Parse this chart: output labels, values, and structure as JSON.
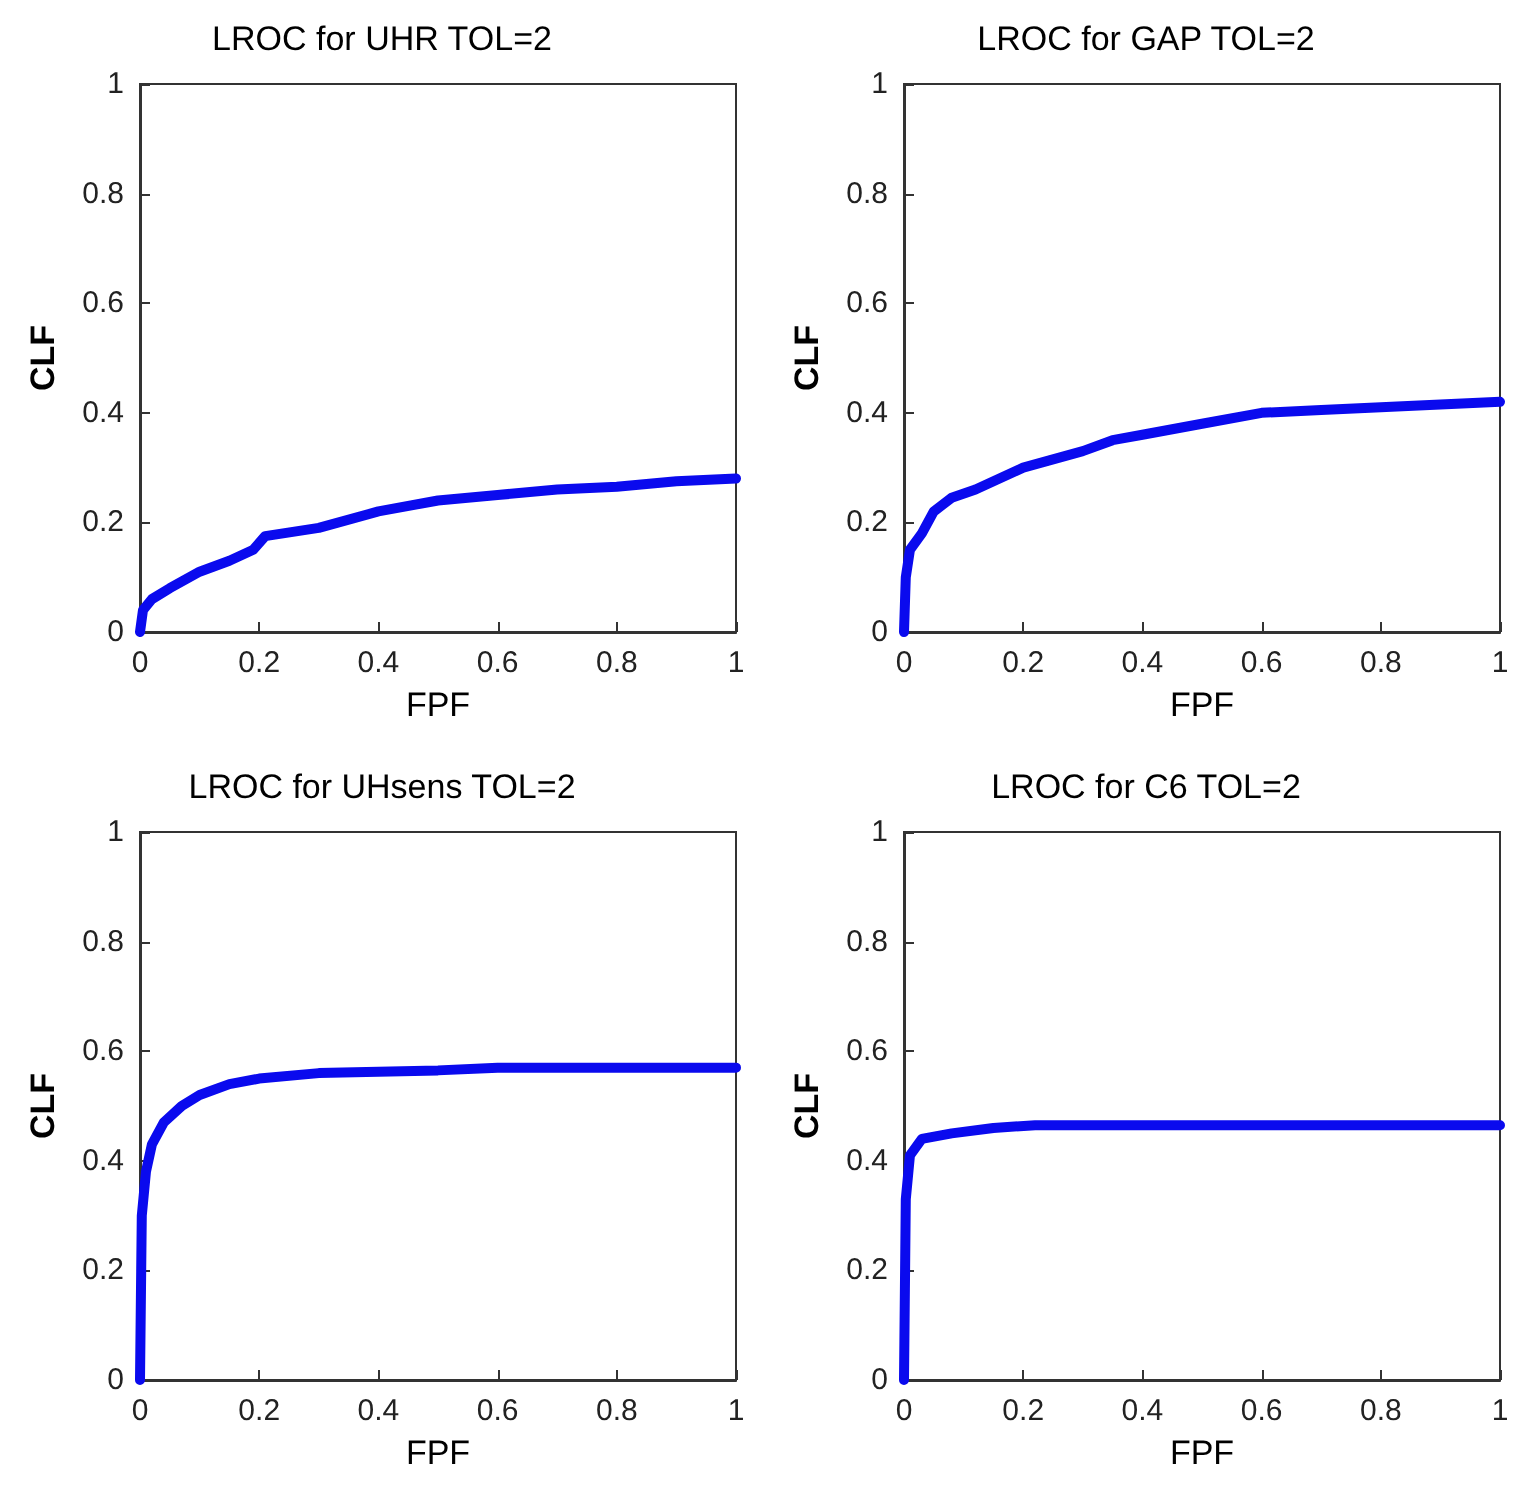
{
  "chart_data": [
    {
      "type": "line",
      "title": "LROC for UHR TOL=2",
      "xlabel": "FPF",
      "ylabel": "CLF",
      "xlim": [
        0,
        1
      ],
      "ylim": [
        0,
        1
      ],
      "xticks": [
        0,
        0.2,
        0.4,
        0.6,
        0.8,
        1
      ],
      "yticks": [
        0,
        0.2,
        0.4,
        0.6,
        0.8,
        1
      ],
      "marker": "none",
      "line_style": "solid",
      "series": [
        {
          "color": "#0a0aee",
          "x": [
            0,
            0.005,
            0.02,
            0.05,
            0.1,
            0.15,
            0.19,
            0.21,
            0.3,
            0.4,
            0.5,
            0.6,
            0.7,
            0.8,
            0.9,
            1
          ],
          "values": [
            0,
            0.04,
            0.06,
            0.08,
            0.11,
            0.13,
            0.15,
            0.175,
            0.19,
            0.22,
            0.24,
            0.25,
            0.26,
            0.265,
            0.275,
            0.28
          ]
        }
      ]
    },
    {
      "type": "line",
      "title": "LROC for GAP TOL=2",
      "xlabel": "FPF",
      "ylabel": "CLF",
      "xlim": [
        0,
        1
      ],
      "ylim": [
        0,
        1
      ],
      "xticks": [
        0,
        0.2,
        0.4,
        0.6,
        0.8,
        1
      ],
      "yticks": [
        0,
        0.2,
        0.4,
        0.6,
        0.8,
        1
      ],
      "marker": "none",
      "line_style": "solid",
      "series": [
        {
          "color": "#0a0aee",
          "x": [
            0,
            0.003,
            0.01,
            0.03,
            0.05,
            0.08,
            0.12,
            0.2,
            0.3,
            0.35,
            0.4,
            0.5,
            0.6,
            0.7,
            0.8,
            1
          ],
          "values": [
            0,
            0.1,
            0.15,
            0.18,
            0.22,
            0.245,
            0.26,
            0.3,
            0.33,
            0.35,
            0.36,
            0.38,
            0.4,
            0.405,
            0.41,
            0.42
          ]
        }
      ]
    },
    {
      "type": "line",
      "title": "LROC for UHsens TOL=2",
      "xlabel": "FPF",
      "ylabel": "CLF",
      "xlim": [
        0,
        1
      ],
      "ylim": [
        0,
        1
      ],
      "xticks": [
        0,
        0.2,
        0.4,
        0.6,
        0.8,
        1
      ],
      "yticks": [
        0,
        0.2,
        0.4,
        0.6,
        0.8,
        1
      ],
      "marker": "none",
      "line_style": "solid",
      "series": [
        {
          "color": "#0a0aee",
          "x": [
            0,
            0.003,
            0.01,
            0.02,
            0.04,
            0.07,
            0.1,
            0.15,
            0.2,
            0.3,
            0.5,
            0.6,
            1
          ],
          "values": [
            0,
            0.3,
            0.38,
            0.43,
            0.47,
            0.5,
            0.52,
            0.54,
            0.55,
            0.56,
            0.565,
            0.57,
            0.57
          ]
        }
      ]
    },
    {
      "type": "line",
      "title": "LROC for C6 TOL=2",
      "xlabel": "FPF",
      "ylabel": "CLF",
      "xlim": [
        0,
        1
      ],
      "ylim": [
        0,
        1
      ],
      "xticks": [
        0,
        0.2,
        0.4,
        0.6,
        0.8,
        1
      ],
      "yticks": [
        0,
        0.2,
        0.4,
        0.6,
        0.8,
        1
      ],
      "marker": "none",
      "line_style": "solid",
      "series": [
        {
          "color": "#0a0aee",
          "x": [
            0,
            0.003,
            0.01,
            0.03,
            0.08,
            0.15,
            0.22,
            1
          ],
          "values": [
            0,
            0.33,
            0.41,
            0.44,
            0.45,
            0.46,
            0.465,
            0.465
          ]
        }
      ]
    }
  ]
}
